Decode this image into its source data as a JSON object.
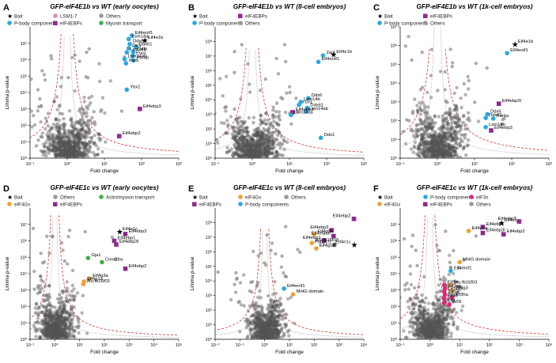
{
  "colors": {
    "others": "#555555",
    "pbody": "#29a8e0",
    "eif4ebp": "#8e2a8e",
    "eif4g": "#f0a030",
    "lsm": "#e08ab8",
    "myosin": "#3fae49",
    "eif3": "#e0287a",
    "threshold_red": "#d9342b",
    "threshold_grey": "#9a9a9a"
  },
  "chart_data": [
    {
      "panel": "A",
      "title": "GFP-eIF4E1b vs WT (early oocytes)",
      "type": "scatter",
      "xlabel": "Fold change",
      "ylabel": "Limma p-value",
      "xscale": "log",
      "xlim": [
        0.1,
        1000
      ],
      "xticks": [
        0.1,
        1,
        10,
        100,
        1000
      ],
      "yscale": "log",
      "ylim": [
        1,
        100000000.0
      ],
      "yticks": [
        1,
        10,
        100,
        1000,
        10000,
        100000,
        1000000,
        10000000
      ],
      "legend": [
        {
          "label": "Bait",
          "marker": "star",
          "color": "#000000"
        },
        {
          "label": "P-body components",
          "marker": "circle",
          "color": "#29a8e0"
        },
        {
          "label": "LSM1-7",
          "marker": "circle",
          "color": "#e08ab8"
        },
        {
          "label": "eIF4EBPs",
          "marker": "square",
          "color": "#8e2a8e"
        },
        {
          "label": "Others",
          "marker": "circle",
          "color": "#999999"
        },
        {
          "label": "Myosin transport",
          "marker": "circle",
          "color": "#3fae49"
        }
      ],
      "points": [
        {
          "label": "Eif4e1b",
          "x": 120,
          "y": 15000000.0,
          "kind": "bait"
        },
        {
          "label": "Eif4enif1",
          "x": 55,
          "y": 30000000.0,
          "kind": "pbody"
        },
        {
          "label": "Lsm14a",
          "x": 45,
          "y": 18000000.0,
          "kind": "pbody"
        },
        {
          "label": "Ddx6",
          "x": 48,
          "y": 9000000.0,
          "kind": "pbody"
        },
        {
          "label": "Ddx61",
          "x": 70,
          "y": 6000000.0,
          "kind": "pbody"
        },
        {
          "label": "Zar1",
          "x": 45,
          "y": 5000000.0,
          "kind": "pbody"
        },
        {
          "label": "Zar1l",
          "x": 60,
          "y": 3000000.0,
          "kind": "pbody"
        },
        {
          "label": "Lsm14b",
          "x": 40,
          "y": 2800000.0,
          "kind": "pbody"
        },
        {
          "label": "Pura",
          "x": 58,
          "y": 1700000.0,
          "kind": "pbody"
        },
        {
          "label": "Lsm14ab",
          "x": 35,
          "y": 1100000.0,
          "kind": "pbody"
        },
        {
          "label": "Purab",
          "x": 60,
          "y": 900000.0,
          "kind": "pbody"
        },
        {
          "label": "Purb",
          "x": 38,
          "y": 600000.0,
          "kind": "pbody"
        },
        {
          "label": "Ybx1",
          "x": 40,
          "y": 15000.0,
          "kind": "pbody"
        },
        {
          "label": "Eif4ebp3",
          "x": 90,
          "y": 1000.0,
          "kind": "eif4ebp"
        },
        {
          "label": "Eif4ebp2",
          "x": 25,
          "y": 22,
          "kind": "eif4ebp"
        }
      ]
    },
    {
      "panel": "B",
      "title": "GFP-eIF4E1b vs WT (8-cell embryos)",
      "type": "scatter",
      "xlabel": "Fold change",
      "ylabel": "Limma p-value",
      "xscale": "log",
      "xlim": [
        0.1,
        1000
      ],
      "xticks": [
        0.1,
        1,
        10,
        100,
        1000
      ],
      "yscale": "log",
      "ylim": [
        1,
        1000000000.0
      ],
      "yticks": [
        1,
        10,
        100,
        1000,
        10000,
        100000,
        1000000,
        10000000,
        100000000
      ],
      "legend": [
        {
          "label": "Bait",
          "marker": "star",
          "color": "#000000"
        },
        {
          "label": "P-body components",
          "marker": "circle",
          "color": "#29a8e0"
        },
        {
          "label": "eIF4EBPs",
          "marker": "square",
          "color": "#8e2a8e"
        },
        {
          "label": "Others",
          "marker": "circle",
          "color": "#999999"
        }
      ],
      "points": [
        {
          "label": "Eif4e1b",
          "x": 150,
          "y": 13000000.0,
          "kind": "bait"
        },
        {
          "label": "Zar1",
          "x": 80,
          "y": 11000000.0,
          "kind": "pbody"
        },
        {
          "label": "Eif4enif1",
          "x": 60,
          "y": 4000000.0,
          "kind": "pbody"
        },
        {
          "label": "Ddx6",
          "x": 32,
          "y": 13000.0,
          "kind": "pbody"
        },
        {
          "label": "Lsm14b",
          "x": 20,
          "y": 7000.0,
          "kind": "pbody"
        },
        {
          "label": "Ybx1",
          "x": 18,
          "y": 4500.0,
          "kind": "pbody"
        },
        {
          "label": "Ddx61",
          "x": 30,
          "y": 2800.0,
          "kind": "pbody"
        },
        {
          "label": "Lsm14ab",
          "x": 28,
          "y": 1600.0,
          "kind": "pbody"
        },
        {
          "label": "Eif4ebp3",
          "x": 12,
          "y": 1400.0,
          "kind": "eif4ebp"
        },
        {
          "label": "Lsm14aa",
          "x": 11,
          "y": 900,
          "kind": "pbody"
        },
        {
          "label": "Ddx1",
          "x": 70,
          "y": 25,
          "kind": "pbody"
        }
      ]
    },
    {
      "panel": "C",
      "title": "GFP-eIF4E1b vs WT (1k-cell embryos)",
      "type": "scatter",
      "xlabel": "Fold change",
      "ylabel": "Limma p-value",
      "xscale": "log",
      "xlim": [
        0.1,
        1000
      ],
      "xticks": [
        0.1,
        1,
        10,
        100,
        1000
      ],
      "yscale": "log",
      "ylim": [
        1,
        10000000.0
      ],
      "yticks": [
        1,
        10,
        100,
        1000,
        10000,
        100000,
        1000000,
        10000000
      ],
      "legend": [
        {
          "label": "Bait",
          "marker": "star",
          "color": "#000000"
        },
        {
          "label": "P-body components",
          "marker": "circle",
          "color": "#29a8e0"
        },
        {
          "label": "eIF4EBPs",
          "marker": "square",
          "color": "#8e2a8e"
        },
        {
          "label": "Others",
          "marker": "circle",
          "color": "#999999"
        }
      ],
      "points": [
        {
          "label": "Eif4e1b",
          "x": 120,
          "y": 1200000.0,
          "kind": "bait"
        },
        {
          "label": "Eif4enif1",
          "x": 75,
          "y": 400000.0,
          "kind": "pbody"
        },
        {
          "label": "Eif4ebp3l",
          "x": 45,
          "y": 800,
          "kind": "eif4ebp"
        },
        {
          "label": "Ddx6",
          "x": 22,
          "y": 220,
          "kind": "pbody"
        },
        {
          "label": "Ddx61",
          "x": 20,
          "y": 140,
          "kind": "pbody"
        },
        {
          "label": "Purba",
          "x": 32,
          "y": 130,
          "kind": "pbody"
        },
        {
          "label": "Lsm14b",
          "x": 20,
          "y": 45,
          "kind": "pbody"
        },
        {
          "label": "Eif4ebp3",
          "x": 28,
          "y": 30,
          "kind": "eif4ebp"
        }
      ]
    },
    {
      "panel": "D",
      "title": "GFP-eIF4E1c vs WT (early oocytes)",
      "type": "scatter",
      "xlabel": "Fold change",
      "ylabel": "Limma p-value",
      "xscale": "log",
      "xlim": [
        0.1,
        100000
      ],
      "xticks": [
        0.1,
        1,
        10,
        100,
        1000,
        10000,
        100000
      ],
      "yscale": "log",
      "ylim": [
        1,
        100000000.0
      ],
      "yticks": [
        1,
        10,
        100,
        1000,
        10000,
        100000,
        1000000,
        10000000
      ],
      "legend": [
        {
          "label": "Bait",
          "marker": "star",
          "color": "#000000"
        },
        {
          "label": "eIF4Gs",
          "marker": "circle",
          "color": "#f0a030"
        },
        {
          "label": "Others",
          "marker": "circle",
          "color": "#999999"
        },
        {
          "label": "eIF4EBPs",
          "marker": "square",
          "color": "#8e2a8e"
        },
        {
          "label": "Actin/myosin transport",
          "marker": "circle",
          "color": "#3fae49"
        }
      ],
      "points": [
        {
          "label": "Eif4e1c",
          "x": 400,
          "y": 3500000.0,
          "kind": "bait"
        },
        {
          "label": "Eif4ebp3",
          "x": 700,
          "y": 2600000.0,
          "kind": "eif4ebp"
        },
        {
          "label": "Eif4ebp1",
          "x": 250,
          "y": 1000000.0,
          "kind": "eif4ebp"
        },
        {
          "label": "Eif4ebp3l",
          "x": 300,
          "y": 600000.0,
          "kind": "eif4ebp"
        },
        {
          "label": "Gja1",
          "x": 22,
          "y": 90000.0,
          "kind": "myosin"
        },
        {
          "label": "Coro2ba",
          "x": 80,
          "y": 50000.0,
          "kind": "myosin"
        },
        {
          "label": "Eif4ebp2",
          "x": 700,
          "y": 20000.0,
          "kind": "eif4ebp"
        },
        {
          "label": "Eif4g3a",
          "x": 25,
          "y": 5000.0,
          "kind": "eif4g"
        },
        {
          "label": "Eif4g1a",
          "x": 15,
          "y": 3300.0,
          "kind": "eif4g"
        },
        {
          "label": "Wu:fb16f03",
          "x": 14,
          "y": 2300.0,
          "kind": "eif4g"
        }
      ]
    },
    {
      "panel": "E",
      "title": "GFP-eIF4E1c vs WT (8-cell embryos)",
      "type": "scatter",
      "xlabel": "Fold change",
      "ylabel": "Limma p-value",
      "xscale": "log",
      "xlim": [
        0.01,
        10000
      ],
      "xticks": [
        0.01,
        0.1,
        1,
        10,
        100,
        1000,
        10000
      ],
      "yscale": "log",
      "ylim": [
        1,
        1000000000.0
      ],
      "yticks": [
        1,
        10,
        100,
        1000,
        10000,
        100000,
        1000000,
        10000000,
        100000000
      ],
      "legend": [
        {
          "label": "Bait",
          "marker": "star",
          "color": "#000000"
        },
        {
          "label": "eIF4EBPs",
          "marker": "square",
          "color": "#8e2a8e"
        },
        {
          "label": "eIF4Gs",
          "marker": "circle",
          "color": "#f0a030"
        },
        {
          "label": "P-body components",
          "marker": "circle",
          "color": "#29a8e0"
        },
        {
          "label": "Others",
          "marker": "circle",
          "color": "#999999"
        }
      ],
      "points": [
        {
          "label": "Eif4ebp2",
          "x": 4000,
          "y": 180000000.0,
          "kind": "eif4ebp"
        },
        {
          "label": "Eif4ebp3",
          "x": 500,
          "y": 30000000.0,
          "kind": "eif4ebp"
        },
        {
          "label": "Eif4g3b",
          "x": 100,
          "y": 16000000.0,
          "kind": "eif4g"
        },
        {
          "label": "Eif4ebp3l",
          "x": 600,
          "y": 12000000.0,
          "kind": "eif4ebp"
        },
        {
          "label": "Eif4ebp1",
          "x": 250,
          "y": 6000000.0,
          "kind": "eif4ebp"
        },
        {
          "label": "Wu:fb16f03",
          "x": 80,
          "y": 4000000.0,
          "kind": "eif4g"
        },
        {
          "label": "Pabpc1l",
          "x": 650,
          "y": 3000000.0,
          "kind": "others"
        },
        {
          "label": "Eif4e1c",
          "x": 4000,
          "y": 3000000.0,
          "kind": "bait"
        },
        {
          "label": "Eif4g1a",
          "x": 120,
          "y": 1700000.0,
          "kind": "eif4g"
        },
        {
          "label": "Eif4enif1",
          "x": 6,
          "y": 3000.0,
          "kind": "pbody"
        },
        {
          "label": "MI4G domain",
          "x": 14,
          "y": 1200.0,
          "kind": "eif4g"
        }
      ]
    },
    {
      "panel": "F",
      "title": "GFP-eIF4E1c vs WT (1k-cell embryos)",
      "type": "scatter",
      "xlabel": "Fold change",
      "ylabel": "Limma p-value",
      "xscale": "log",
      "xlim": [
        0.1,
        10000
      ],
      "xticks": [
        0.1,
        1,
        10,
        100,
        1000,
        10000
      ],
      "yscale": "log",
      "ylim": [
        1,
        100000000.0
      ],
      "yticks": [
        1,
        10,
        100,
        1000,
        10000,
        100000,
        1000000,
        10000000
      ],
      "legend": [
        {
          "label": "Bait",
          "marker": "star",
          "color": "#000000"
        },
        {
          "label": "eIF4Gs",
          "marker": "circle",
          "color": "#f0a030"
        },
        {
          "label": "P-body components",
          "marker": "circle",
          "color": "#29a8e0"
        },
        {
          "label": "eIF4EBPs",
          "marker": "square",
          "color": "#8e2a8e"
        },
        {
          "label": "eIF3s",
          "marker": "circle",
          "color": "#e0287a"
        },
        {
          "label": "Others",
          "marker": "circle",
          "color": "#999999"
        }
      ],
      "points": [
        {
          "label": "Eif4e1c",
          "x": 250,
          "y": 12000000.0,
          "kind": "bait"
        },
        {
          "label": "Eif4ebp3",
          "x": 1000,
          "y": 15000000.0,
          "kind": "eif4ebp"
        },
        {
          "label": "Eif4ebp1",
          "x": 60,
          "y": 7000000.0,
          "kind": "eif4ebp"
        },
        {
          "label": "Eif4g1a",
          "x": 20,
          "y": 4000000.0,
          "kind": "eif4g"
        },
        {
          "label": "Eif4ebp3l",
          "x": 60,
          "y": 3000000.0,
          "kind": "eif4ebp"
        },
        {
          "label": "Eif4ebp2",
          "x": 300,
          "y": 2500000.0,
          "kind": "eif4ebp"
        },
        {
          "label": "MI4G domain",
          "x": 10,
          "y": 50000.0,
          "kind": "eif4g"
        },
        {
          "label": "Eif4enif1",
          "x": 5,
          "y": 15000.0,
          "kind": "pbody"
        },
        {
          "label": "Wu:fb16f03",
          "x": 5,
          "y": 2000.0,
          "kind": "eif4g"
        },
        {
          "label": "Eif3m",
          "x": 3,
          "y": 2000.0,
          "kind": "eif3"
        },
        {
          "label": "Eif3ea",
          "x": 3.2,
          "y": 1200.0,
          "kind": "eif3"
        },
        {
          "label": "Eif4g3",
          "x": 5.5,
          "y": 900,
          "kind": "eif4g"
        },
        {
          "label": "Eif3s12",
          "x": 3,
          "y": 800,
          "kind": "eif3"
        },
        {
          "label": "Eif3g",
          "x": 3.2,
          "y": 500,
          "kind": "eif3"
        },
        {
          "label": "Eif3ha",
          "x": 5.5,
          "y": 350,
          "kind": "eif3"
        },
        {
          "label": "Eif3d",
          "x": 3,
          "y": 300,
          "kind": "eif3"
        },
        {
          "label": "Eif3",
          "x": 3,
          "y": 160,
          "kind": "eif3"
        },
        {
          "label": "Eif3i",
          "x": 4.5,
          "y": 130,
          "kind": "eif3"
        }
      ]
    }
  ]
}
